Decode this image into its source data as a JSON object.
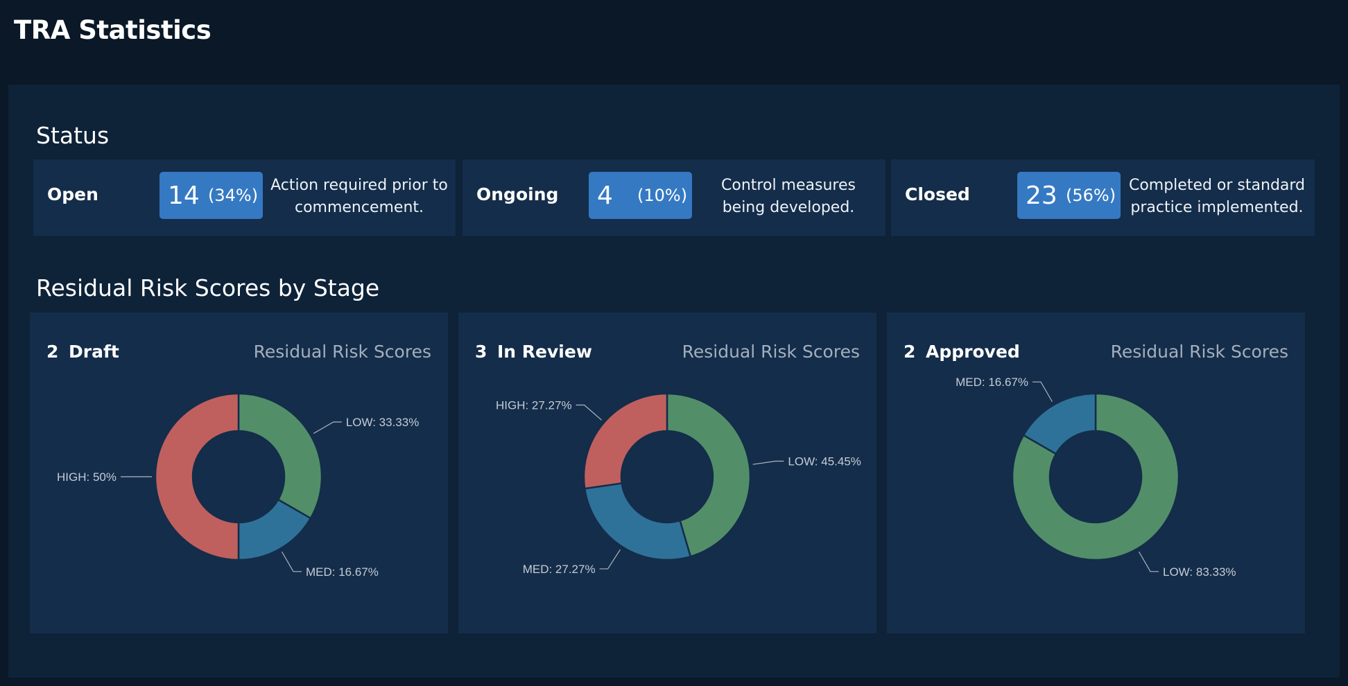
{
  "page_title": "TRA Statistics",
  "status": {
    "heading": "Status",
    "cards": [
      {
        "label": "Open",
        "count": "14",
        "percent": "(34%)",
        "description": "Action required prior to commencement."
      },
      {
        "label": "Ongoing",
        "count": "4",
        "percent": "(10%)",
        "description": "Control measures being developed."
      },
      {
        "label": "Closed",
        "count": "23",
        "percent": "(56%)",
        "description": "Completed or standard practice implemented."
      }
    ]
  },
  "risk": {
    "heading": "Residual Risk Scores by Stage",
    "colors": {
      "HIGH": "#c0605e",
      "MED": "#2f7299",
      "LOW": "#528f69"
    }
  },
  "chart_data": [
    {
      "type": "pie",
      "count": "2",
      "stage": "Draft",
      "title": "Residual Risk Scores",
      "slices": [
        {
          "name": "LOW",
          "value": 33.33,
          "label": "LOW: 33.33%"
        },
        {
          "name": "MED",
          "value": 16.67,
          "label": "MED: 16.67%"
        },
        {
          "name": "HIGH",
          "value": 50,
          "label": "HIGH: 50%"
        }
      ]
    },
    {
      "type": "pie",
      "count": "3",
      "stage": "In Review",
      "title": "Residual Risk Scores",
      "slices": [
        {
          "name": "LOW",
          "value": 45.45,
          "label": "LOW: 45.45%"
        },
        {
          "name": "MED",
          "value": 27.27,
          "label": "MED: 27.27%"
        },
        {
          "name": "HIGH",
          "value": 27.27,
          "label": "HIGH: 27.27%"
        }
      ]
    },
    {
      "type": "pie",
      "count": "2",
      "stage": "Approved",
      "title": "Residual Risk Scores",
      "slices": [
        {
          "name": "LOW",
          "value": 83.33,
          "label": "LOW: 83.33%"
        },
        {
          "name": "MED",
          "value": 16.67,
          "label": "MED: 16.67%"
        }
      ]
    }
  ]
}
